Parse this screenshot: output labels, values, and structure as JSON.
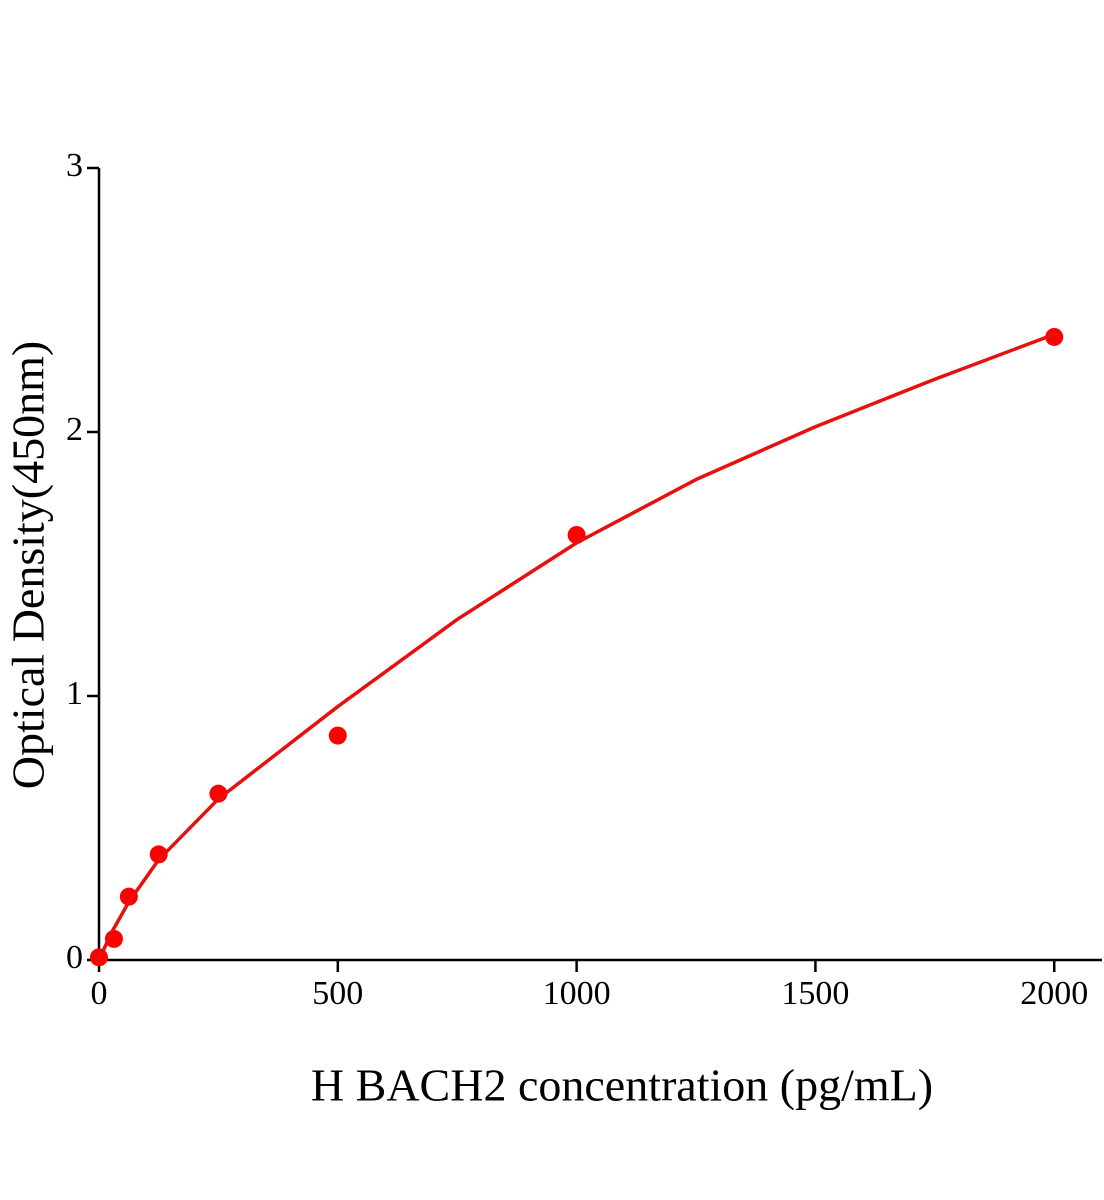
{
  "chart_data": {
    "type": "scatter",
    "x_label": "H BACH2 concentration (pg/mL)",
    "y_label": "Optical Density(450nm)",
    "xlim": [
      0,
      2100
    ],
    "ylim": [
      0,
      3
    ],
    "xticks": [
      0,
      500,
      1000,
      1500,
      2000
    ],
    "yticks": [
      0,
      1,
      2,
      3
    ],
    "series": [
      {
        "style": "points",
        "color": "#ff0000",
        "x": [
          0,
          31.25,
          62.5,
          125,
          250,
          500,
          1000,
          2000
        ],
        "values": [
          0.01,
          0.08,
          0.24,
          0.4,
          0.63,
          0.85,
          1.61,
          2.36
        ]
      },
      {
        "style": "line",
        "color": "#e8100f",
        "x": [
          0,
          25,
          62.5,
          125,
          250,
          500,
          750,
          1000,
          1250,
          1500,
          1750,
          2000
        ],
        "values": [
          0,
          0.1,
          0.22,
          0.38,
          0.61,
          0.96,
          1.29,
          1.58,
          1.82,
          2.02,
          2.2,
          2.37
        ]
      }
    ]
  }
}
